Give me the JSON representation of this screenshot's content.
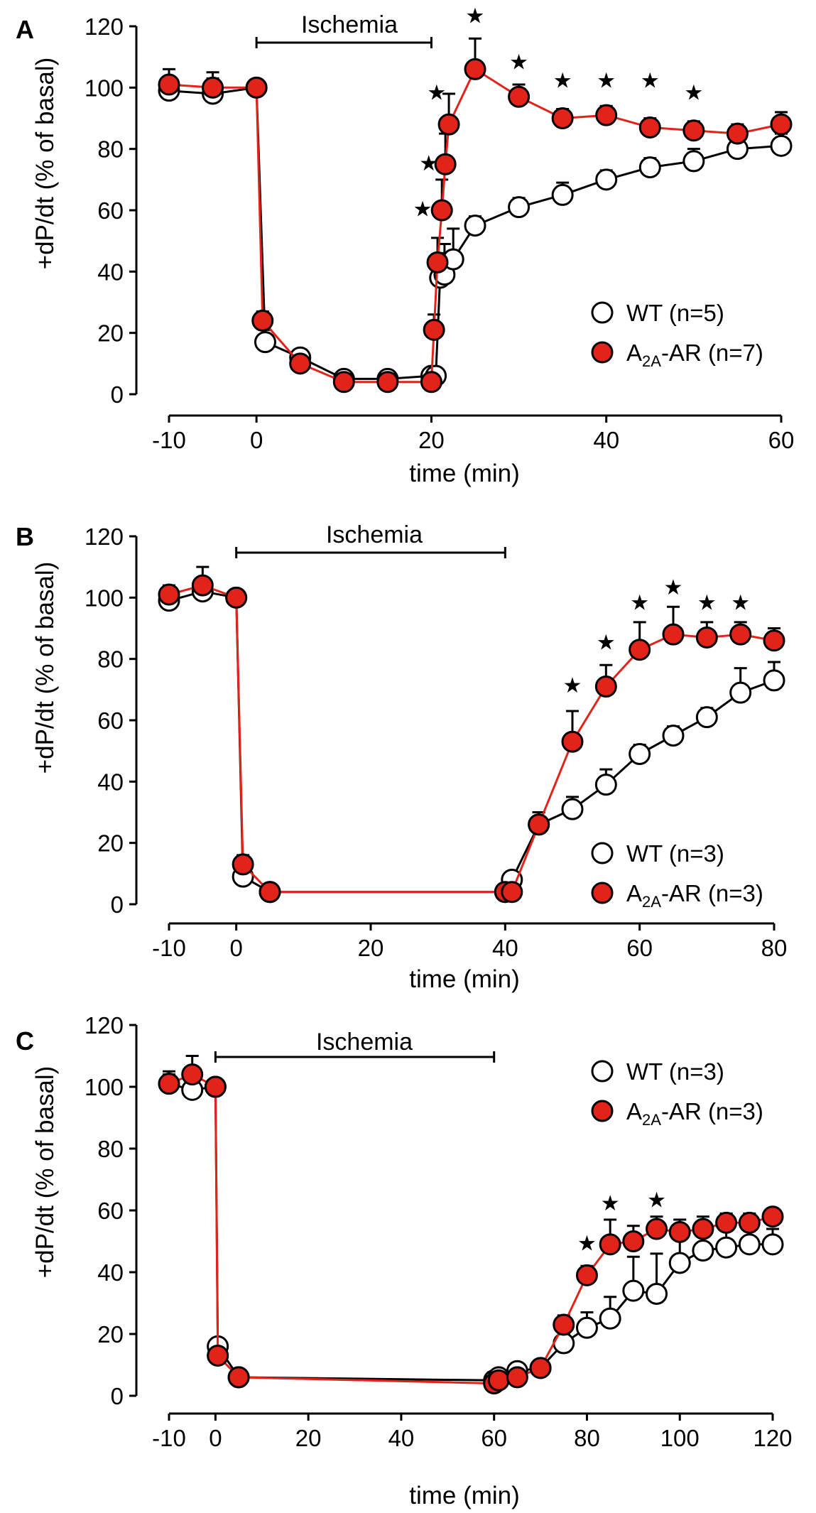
{
  "colors": {
    "wt_fill": "#ffffff",
    "a2a_fill": "#e2231a",
    "a2a_line": "#e2231a",
    "wt_line": "#000000",
    "axis": "#000000"
  },
  "chart_data": [
    {
      "type": "line",
      "panel": "A",
      "xlabel": "time (min)",
      "ylabel": "+dP/dt (% of basal)",
      "xlim": [
        -10,
        60
      ],
      "ylim": [
        0,
        120
      ],
      "xticks": [
        -10,
        0,
        20,
        40,
        60
      ],
      "yticks": [
        0,
        20,
        40,
        60,
        80,
        100,
        120
      ],
      "ischemia": {
        "label": "Ischemia",
        "start": 0,
        "end": 20
      },
      "series": [
        {
          "name": "WT",
          "legend": {
            "main": "WT (n=5)"
          },
          "x": [
            -10,
            -5,
            0,
            1,
            5,
            10,
            15,
            20,
            20.5,
            21,
            21.5,
            22.5,
            25,
            30,
            35,
            40,
            45,
            50,
            55,
            60
          ],
          "y": [
            99,
            98,
            100,
            17,
            12,
            5,
            5,
            6,
            6,
            38,
            39,
            44,
            55,
            61,
            65,
            70,
            74,
            76,
            80,
            81
          ],
          "err": [
            3,
            5,
            0,
            4,
            2,
            1,
            1,
            1,
            1,
            8,
            10,
            10,
            3,
            3,
            4,
            3,
            3,
            4,
            4,
            4
          ]
        },
        {
          "name": "A2A-AR",
          "legend": {
            "pre": "A",
            "sub": "2A",
            "post": "-AR (n=7)"
          },
          "x": [
            -10,
            -5,
            0,
            0.7,
            5,
            10,
            15,
            20,
            20.3,
            20.7,
            21.2,
            21.6,
            22,
            25,
            30,
            35,
            40,
            45,
            50,
            55,
            60
          ],
          "y": [
            101,
            100,
            100,
            24,
            10,
            4,
            4,
            4,
            21,
            43,
            60,
            75,
            88,
            106,
            97,
            90,
            91,
            87,
            86,
            85,
            88
          ],
          "err": [
            5,
            5,
            0,
            3,
            2,
            1,
            1,
            1,
            5,
            8,
            10,
            10,
            10,
            10,
            4,
            3,
            3,
            3,
            3,
            3,
            4
          ]
        }
      ],
      "stars": [
        {
          "x": 19,
          "y": 58,
          "text": "★"
        },
        {
          "x": 19.7,
          "y": 73,
          "text": "★"
        },
        {
          "x": 20.6,
          "y": 96,
          "text": "★"
        },
        {
          "x": 25,
          "y": 121,
          "text": "★"
        },
        {
          "x": 30,
          "y": 106,
          "text": "★"
        },
        {
          "x": 35,
          "y": 100,
          "text": "★"
        },
        {
          "x": 40,
          "y": 100,
          "text": "★"
        },
        {
          "x": 45,
          "y": 100,
          "text": "★"
        },
        {
          "x": 50,
          "y": 96,
          "text": "★"
        }
      ]
    },
    {
      "type": "line",
      "panel": "B",
      "xlabel": "time (min)",
      "ylabel": "+dP/dt (% of basal)",
      "xlim": [
        -10,
        80
      ],
      "ylim": [
        0,
        120
      ],
      "xticks": [
        -10,
        0,
        20,
        40,
        60,
        80
      ],
      "yticks": [
        0,
        20,
        40,
        60,
        80,
        100,
        120
      ],
      "ischemia": {
        "label": "Ischemia",
        "start": 0,
        "end": 40
      },
      "series": [
        {
          "name": "WT",
          "legend": {
            "main": "WT (n=3)"
          },
          "x": [
            -10,
            -5,
            0,
            1,
            5,
            40,
            41,
            45,
            50,
            55,
            60,
            65,
            70,
            75,
            80
          ],
          "y": [
            99,
            102,
            100,
            9,
            4,
            4,
            8,
            26,
            31,
            39,
            49,
            55,
            61,
            69,
            73
          ],
          "err": [
            4,
            3,
            0,
            2,
            1,
            1,
            2,
            4,
            4,
            5,
            3,
            3,
            3,
            8,
            6
          ]
        },
        {
          "name": "A2A-AR",
          "legend": {
            "pre": "A",
            "sub": "2A",
            "post": "-AR (n=3)"
          },
          "x": [
            -10,
            -5,
            0,
            1,
            5,
            40,
            41,
            45,
            50,
            55,
            60,
            65,
            70,
            75,
            80
          ],
          "y": [
            101,
            104,
            100,
            13,
            4,
            4,
            4,
            26,
            53,
            71,
            83,
            88,
            87,
            88,
            86
          ],
          "err": [
            3,
            6,
            0,
            3,
            1,
            1,
            1,
            4,
            10,
            7,
            9,
            9,
            5,
            4,
            4
          ]
        }
      ],
      "stars": [
        {
          "x": 50,
          "y": 69,
          "text": "★"
        },
        {
          "x": 55,
          "y": 83,
          "text": "★"
        },
        {
          "x": 60,
          "y": 96,
          "text": "★"
        },
        {
          "x": 65,
          "y": 101,
          "text": "★"
        },
        {
          "x": 70,
          "y": 96,
          "text": "★"
        },
        {
          "x": 75,
          "y": 96,
          "text": "★"
        }
      ]
    },
    {
      "type": "line",
      "panel": "C",
      "xlabel": "time (min)",
      "ylabel": "+dP/dt (% of basal)",
      "xlim": [
        -10,
        120
      ],
      "ylim": [
        0,
        120
      ],
      "xticks": [
        -10,
        0,
        20,
        40,
        60,
        80,
        100,
        120
      ],
      "yticks": [
        0,
        20,
        40,
        60,
        80,
        100,
        120
      ],
      "ischemia": {
        "label": "Ischemia",
        "start": 0,
        "end": 60
      },
      "series": [
        {
          "name": "WT",
          "legend": {
            "main": "WT (n=3)"
          },
          "x": [
            -10,
            -5,
            0,
            0.5,
            5,
            60,
            61,
            65,
            70,
            75,
            80,
            85,
            90,
            95,
            100,
            105,
            110,
            115,
            120
          ],
          "y": [
            101,
            99,
            100,
            16,
            6,
            5,
            6,
            8,
            9,
            17,
            22,
            25,
            34,
            33,
            43,
            47,
            48,
            49,
            49
          ],
          "err": [
            3,
            3,
            0,
            2,
            1,
            1,
            1,
            2,
            2,
            3,
            5,
            7,
            11,
            13,
            8,
            6,
            6,
            5,
            5
          ]
        },
        {
          "name": "A2A-AR",
          "legend": {
            "pre": "A",
            "sub": "2A",
            "post": "-AR (n=3)"
          },
          "x": [
            -10,
            -5,
            0,
            0.5,
            5,
            60,
            61,
            65,
            70,
            75,
            80,
            85,
            90,
            95,
            100,
            105,
            110,
            115,
            120
          ],
          "y": [
            101,
            104,
            100,
            13,
            6,
            4,
            5,
            6,
            9,
            23,
            39,
            49,
            50,
            54,
            53,
            54,
            56,
            56,
            58
          ],
          "err": [
            4,
            6,
            0,
            2,
            1,
            1,
            1,
            1,
            2,
            3,
            3,
            8,
            5,
            4,
            4,
            4,
            3,
            3,
            2
          ]
        }
      ],
      "stars": [
        {
          "x": 80,
          "y": 47,
          "text": "★"
        },
        {
          "x": 85,
          "y": 60,
          "text": "★"
        },
        {
          "x": 95,
          "y": 61,
          "text": "★"
        }
      ]
    }
  ]
}
